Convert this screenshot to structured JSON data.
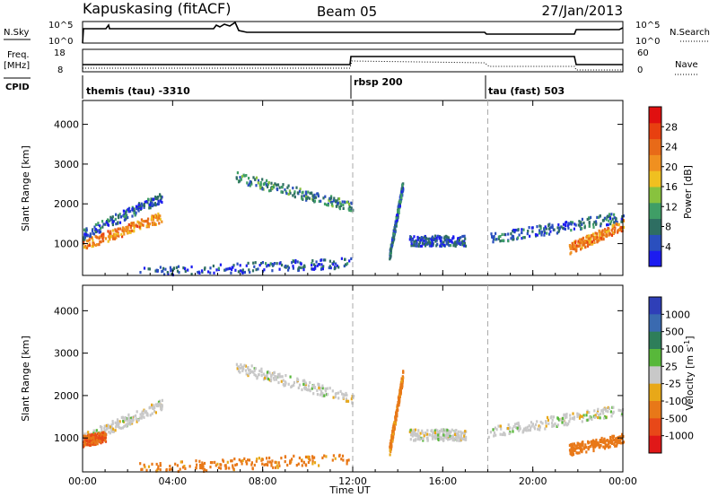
{
  "header": {
    "station": "Kapuskasing (fitACF)",
    "beam": "Beam 05",
    "date": "27/Jan/2013"
  },
  "top_panels": {
    "nsky_label": "N.Sky",
    "nsky_ticks": [
      "10^5",
      "10^0"
    ],
    "nsearch_label": "N.Search",
    "nsearch_ticks": [
      "10^5",
      "10^0"
    ],
    "freq_label_top": "Freq.",
    "freq_label_unit": "[MHz]",
    "freq_ticks": [
      "18",
      "8"
    ],
    "nave_label": "Nave",
    "nave_ticks": [
      "60",
      "0"
    ],
    "cpid_label": "CPID"
  },
  "cpid_segments": [
    {
      "name": "themis (tau) -3310",
      "start": 0,
      "end": 12
    },
    {
      "name": "rbsp 200",
      "start": 12,
      "end": 18
    },
    {
      "name": "tau (fast) 503",
      "start": 18,
      "end": 24
    }
  ],
  "colors": {
    "power_scale": [
      "#1c1cf0",
      "#2a4fbe",
      "#2e6e62",
      "#3f9e66",
      "#88c23e",
      "#f0c020",
      "#f09020",
      "#e86a18",
      "#e84010",
      "#e01010"
    ],
    "velocity_scale": [
      "#2f3fb8",
      "#3a6ab0",
      "#2e7e5a",
      "#58b83a",
      "#c8c8c8",
      "#e8a818",
      "#e87818",
      "#e84818",
      "#e01818"
    ]
  },
  "chart_data": [
    {
      "type": "heatmap",
      "name": "power",
      "xlabel": "",
      "ylabel": "Slant Range [km]",
      "xlim": [
        0,
        24
      ],
      "ylim": [
        200,
        4600
      ],
      "x_ticks": [
        0,
        4,
        8,
        12,
        16,
        20,
        24
      ],
      "x_ticklabels": [
        "00:00",
        "04:00",
        "08:00",
        "12:00",
        "16:00",
        "20:00",
        "00:00"
      ],
      "y_ticks": [
        1000,
        2000,
        3000,
        4000
      ],
      "y_ticklabels": [
        "1000",
        "2000",
        "3000",
        "4000"
      ],
      "colorbar": {
        "label": "Power [dB]",
        "range": [
          0,
          32
        ],
        "ticks": [
          4,
          8,
          12,
          16,
          20,
          24,
          28
        ],
        "ticklabels": [
          "4",
          "8",
          "12",
          "16",
          "20",
          "24",
          "28"
        ]
      },
      "features": [
        {
          "t0": 0.0,
          "t1": 3.5,
          "r0": 1000,
          "r1": 1700,
          "level": 22
        },
        {
          "t0": 0.0,
          "t1": 3.5,
          "r0": 1250,
          "r1": 2200,
          "level": 6
        },
        {
          "t0": 6.8,
          "t1": 12.0,
          "r0": 2700,
          "r1": 1950,
          "level": 9
        },
        {
          "t0": 2.5,
          "t1": 12.0,
          "r0": 300,
          "r1": 550,
          "level": 5
        },
        {
          "t0": 13.6,
          "t1": 14.2,
          "r0": 700,
          "r1": 2500,
          "level": 7
        },
        {
          "t0": 14.5,
          "t1": 17.0,
          "r0": 1100,
          "r1": 1100,
          "level": 5
        },
        {
          "t0": 18.0,
          "t1": 24.0,
          "r0": 1150,
          "r1": 1700,
          "level": 6
        },
        {
          "t0": 21.6,
          "t1": 24.0,
          "r0": 900,
          "r1": 1500,
          "level": 22
        }
      ]
    },
    {
      "type": "heatmap",
      "name": "velocity",
      "xlabel": "Time UT",
      "ylabel": "Slant Range [km]",
      "xlim": [
        0,
        24
      ],
      "ylim": [
        200,
        4600
      ],
      "x_ticks": [
        0,
        4,
        8,
        12,
        16,
        20,
        24
      ],
      "x_ticklabels": [
        "00:00",
        "04:00",
        "08:00",
        "12:00",
        "16:00",
        "20:00",
        "00:00"
      ],
      "y_ticks": [
        1000,
        2000,
        3000,
        4000
      ],
      "y_ticklabels": [
        "1000",
        "2000",
        "3000",
        "4000"
      ],
      "colorbar": {
        "label": "Velocity [m s^-1]",
        "ticklabels": [
          "1000",
          "500",
          "100",
          "25",
          "-25",
          "-100",
          "-500",
          "-1000"
        ]
      },
      "features": [
        {
          "t0": 0.0,
          "t1": 3.5,
          "r0": 1000,
          "r1": 1800,
          "vel": 0
        },
        {
          "t0": 0.0,
          "t1": 1.0,
          "r0": 950,
          "r1": 1050,
          "vel": -300
        },
        {
          "t0": 6.8,
          "t1": 12.0,
          "r0": 2700,
          "r1": 1950,
          "vel": 0
        },
        {
          "t0": 2.5,
          "t1": 12.0,
          "r0": 300,
          "r1": 550,
          "vel": -80
        },
        {
          "t0": 13.6,
          "t1": 14.2,
          "r0": 700,
          "r1": 2500,
          "vel": -80
        },
        {
          "t0": 14.5,
          "t1": 17.0,
          "r0": 1100,
          "r1": 1100,
          "vel": 0
        },
        {
          "t0": 18.0,
          "t1": 24.0,
          "r0": 1150,
          "r1": 1700,
          "vel": 0
        },
        {
          "t0": 21.6,
          "t1": 24.0,
          "r0": 750,
          "r1": 1000,
          "vel": -100
        }
      ]
    }
  ]
}
